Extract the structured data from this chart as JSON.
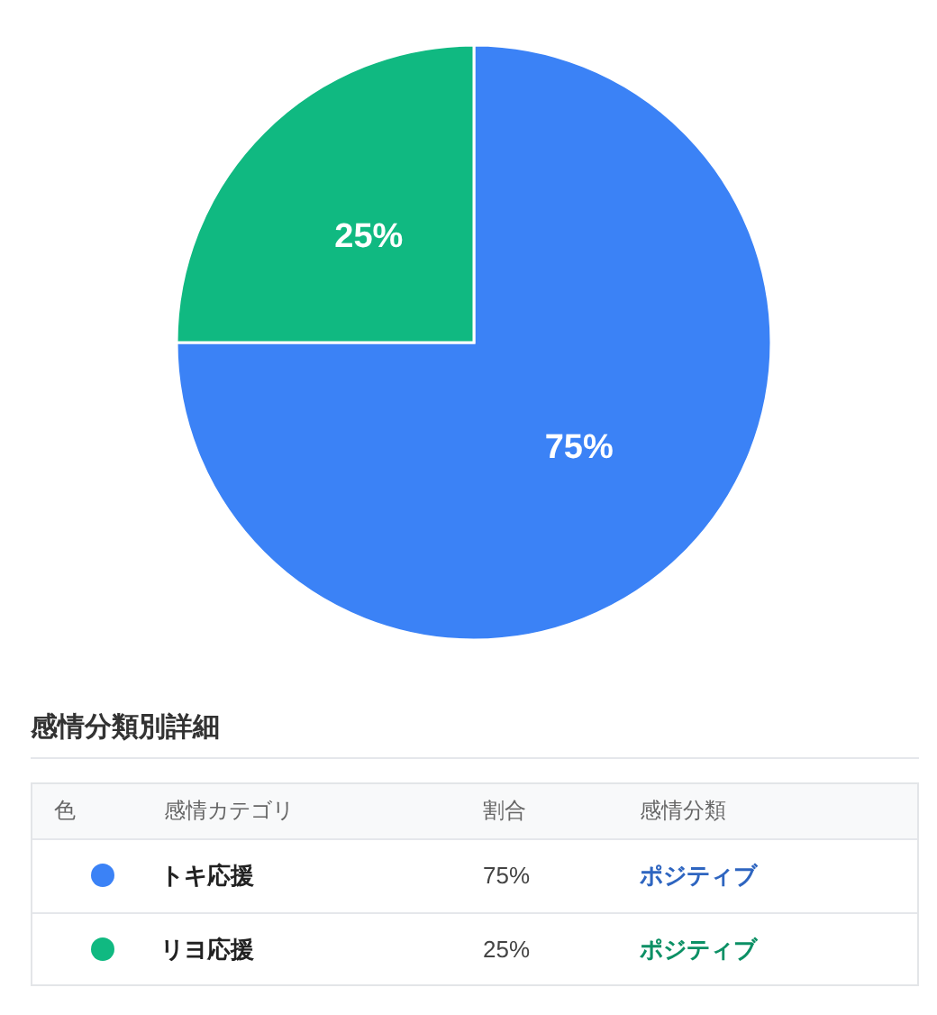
{
  "chart_data": {
    "type": "pie",
    "title": "感情分類別詳細",
    "categories": [
      "トキ応援",
      "リヨ応援"
    ],
    "values": [
      75,
      25
    ],
    "colors": [
      "#3b82f6",
      "#10b981"
    ],
    "value_labels": [
      "75%",
      "25%"
    ],
    "legend": "bottom",
    "annotations": [
      "色",
      "感情カテゴリ",
      "割合",
      "感情分類",
      "ポジティブ",
      "ポジティブ"
    ]
  }
}
